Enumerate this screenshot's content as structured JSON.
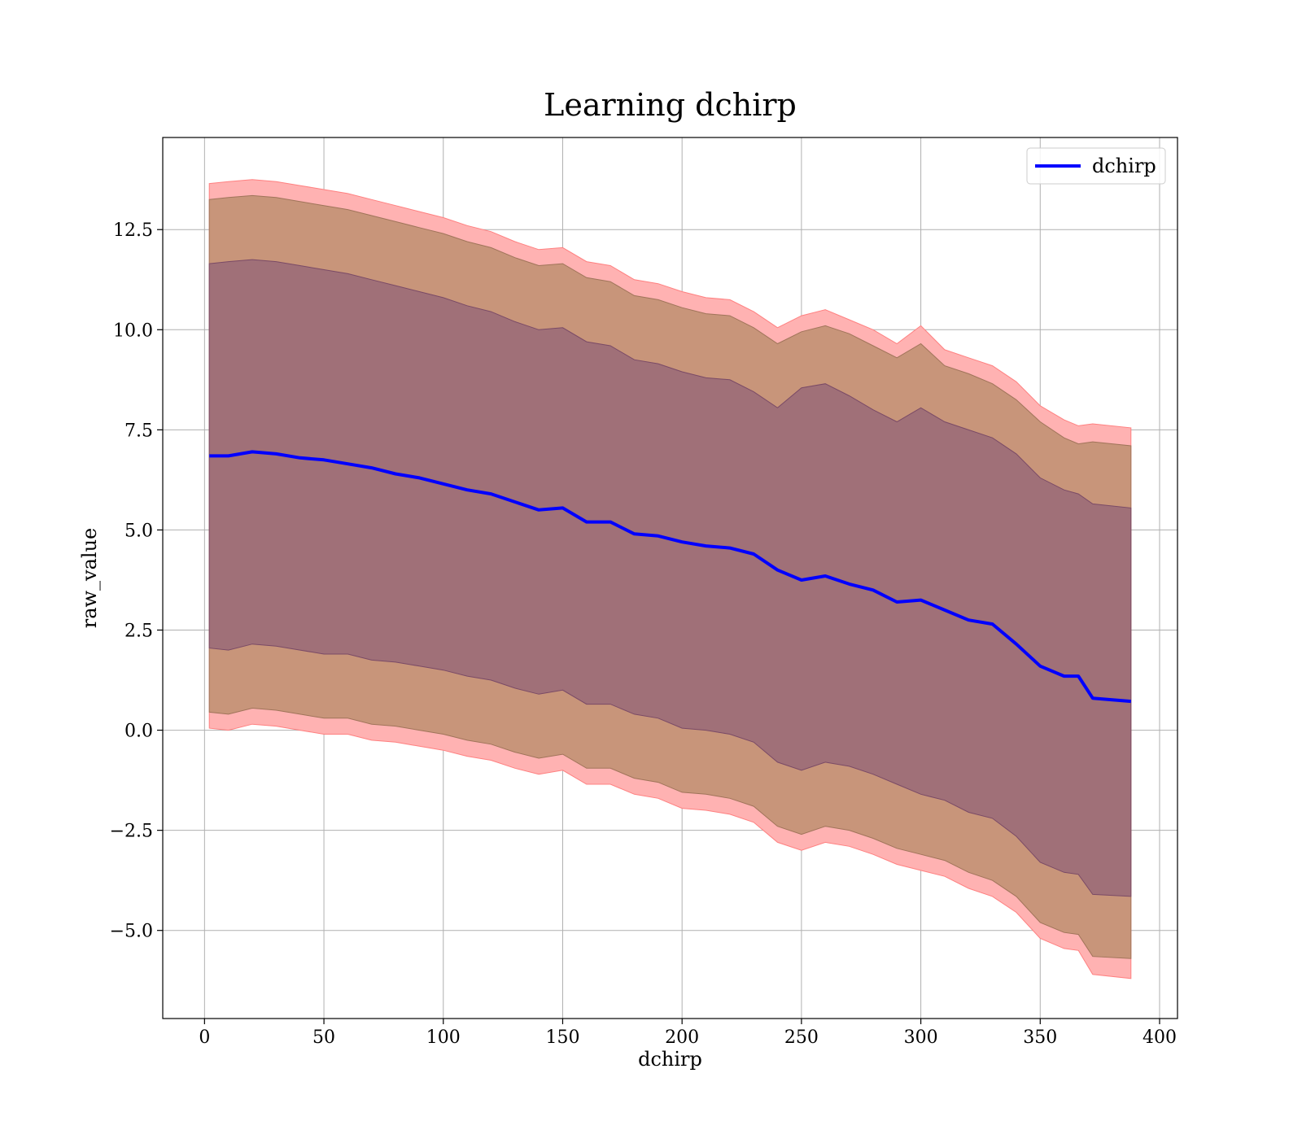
{
  "chart_data": {
    "type": "area",
    "title": "Learning dchirp",
    "xlabel": "dchirp",
    "ylabel": "raw_value",
    "xlim": [
      -17.5,
      407.5
    ],
    "ylim": [
      -7.2,
      14.8
    ],
    "xticks": [
      0,
      50,
      100,
      150,
      200,
      250,
      300,
      350,
      400
    ],
    "xtick_labels": [
      "0",
      "50",
      "100",
      "150",
      "200",
      "250",
      "300",
      "350",
      "400"
    ],
    "yticks": [
      -5.0,
      -2.5,
      0.0,
      2.5,
      5.0,
      7.5,
      10.0,
      12.5
    ],
    "ytick_labels": [
      "−5.0",
      "−2.5",
      "0.0",
      "2.5",
      "5.0",
      "7.5",
      "10.0",
      "12.5"
    ],
    "grid": true,
    "legend": {
      "position": "top-right",
      "entries": [
        "dchirp"
      ]
    },
    "colors": {
      "line": "#0000ff",
      "outer_band": "#ffb2b2",
      "middle_band": "#c8957a",
      "inner_band": "#a07078"
    },
    "series": [
      {
        "name": "dchirp",
        "x": [
          2,
          10,
          20,
          30,
          40,
          50,
          60,
          70,
          80,
          90,
          100,
          110,
          120,
          130,
          140,
          150,
          160,
          170,
          180,
          190,
          200,
          210,
          220,
          230,
          240,
          250,
          260,
          270,
          280,
          290,
          300,
          310,
          320,
          330,
          340,
          350,
          360,
          366,
          372,
          388
        ],
        "y": [
          6.85,
          6.85,
          6.95,
          6.9,
          6.8,
          6.75,
          6.65,
          6.55,
          6.4,
          6.3,
          6.15,
          6.0,
          5.9,
          5.7,
          5.5,
          5.55,
          5.2,
          5.2,
          4.9,
          4.85,
          4.7,
          4.6,
          4.55,
          4.4,
          4.0,
          3.75,
          3.85,
          3.65,
          3.5,
          3.2,
          3.25,
          3.0,
          2.75,
          2.65,
          2.15,
          1.6,
          1.35,
          1.35,
          0.8,
          0.72
        ]
      }
    ],
    "bands": [
      {
        "level": "outer",
        "upper": [
          13.65,
          13.7,
          13.75,
          13.7,
          13.6,
          13.5,
          13.4,
          13.25,
          13.1,
          12.95,
          12.8,
          12.6,
          12.45,
          12.2,
          12.0,
          12.05,
          11.7,
          11.6,
          11.25,
          11.15,
          10.95,
          10.8,
          10.75,
          10.45,
          10.05,
          10.35,
          10.5,
          10.25,
          10.0,
          9.65,
          10.1,
          9.5,
          9.3,
          9.1,
          8.7,
          8.1,
          7.75,
          7.6,
          7.65,
          7.55
        ],
        "lower": [
          0.05,
          0.0,
          0.15,
          0.1,
          0.0,
          -0.1,
          -0.1,
          -0.25,
          -0.3,
          -0.4,
          -0.5,
          -0.65,
          -0.75,
          -0.95,
          -1.1,
          -1.0,
          -1.35,
          -1.35,
          -1.6,
          -1.7,
          -1.95,
          -2.0,
          -2.1,
          -2.3,
          -2.8,
          -3.0,
          -2.8,
          -2.9,
          -3.1,
          -3.35,
          -3.5,
          -3.65,
          -3.95,
          -4.15,
          -4.55,
          -5.2,
          -5.45,
          -5.5,
          -6.1,
          -6.2
        ]
      },
      {
        "level": "middle",
        "upper": [
          13.25,
          13.3,
          13.35,
          13.3,
          13.2,
          13.1,
          13.0,
          12.85,
          12.7,
          12.55,
          12.4,
          12.2,
          12.05,
          11.8,
          11.6,
          11.65,
          11.3,
          11.2,
          10.85,
          10.75,
          10.55,
          10.4,
          10.35,
          10.05,
          9.65,
          9.95,
          10.1,
          9.9,
          9.6,
          9.3,
          9.65,
          9.1,
          8.9,
          8.65,
          8.25,
          7.7,
          7.3,
          7.15,
          7.2,
          7.1
        ],
        "lower": [
          0.45,
          0.4,
          0.55,
          0.5,
          0.4,
          0.3,
          0.3,
          0.15,
          0.1,
          0.0,
          -0.1,
          -0.25,
          -0.35,
          -0.55,
          -0.7,
          -0.6,
          -0.95,
          -0.95,
          -1.2,
          -1.3,
          -1.55,
          -1.6,
          -1.7,
          -1.9,
          -2.4,
          -2.6,
          -2.4,
          -2.5,
          -2.7,
          -2.95,
          -3.1,
          -3.25,
          -3.55,
          -3.75,
          -4.15,
          -4.8,
          -5.05,
          -5.1,
          -5.65,
          -5.7
        ]
      },
      {
        "level": "inner",
        "upper": [
          11.65,
          11.7,
          11.75,
          11.7,
          11.6,
          11.5,
          11.4,
          11.25,
          11.1,
          10.95,
          10.8,
          10.6,
          10.45,
          10.2,
          10.0,
          10.05,
          9.7,
          9.6,
          9.25,
          9.15,
          8.95,
          8.8,
          8.75,
          8.45,
          8.05,
          8.55,
          8.65,
          8.35,
          8.0,
          7.7,
          8.05,
          7.7,
          7.5,
          7.3,
          6.9,
          6.3,
          6.0,
          5.9,
          5.65,
          5.55
        ],
        "lower": [
          2.05,
          2.0,
          2.15,
          2.1,
          2.0,
          1.9,
          1.9,
          1.75,
          1.7,
          1.6,
          1.5,
          1.35,
          1.25,
          1.05,
          0.9,
          1.0,
          0.65,
          0.65,
          0.4,
          0.3,
          0.05,
          0.0,
          -0.1,
          -0.3,
          -0.8,
          -1.0,
          -0.8,
          -0.9,
          -1.1,
          -1.35,
          -1.6,
          -1.75,
          -2.05,
          -2.2,
          -2.65,
          -3.3,
          -3.55,
          -3.6,
          -4.1,
          -4.15
        ]
      }
    ]
  }
}
